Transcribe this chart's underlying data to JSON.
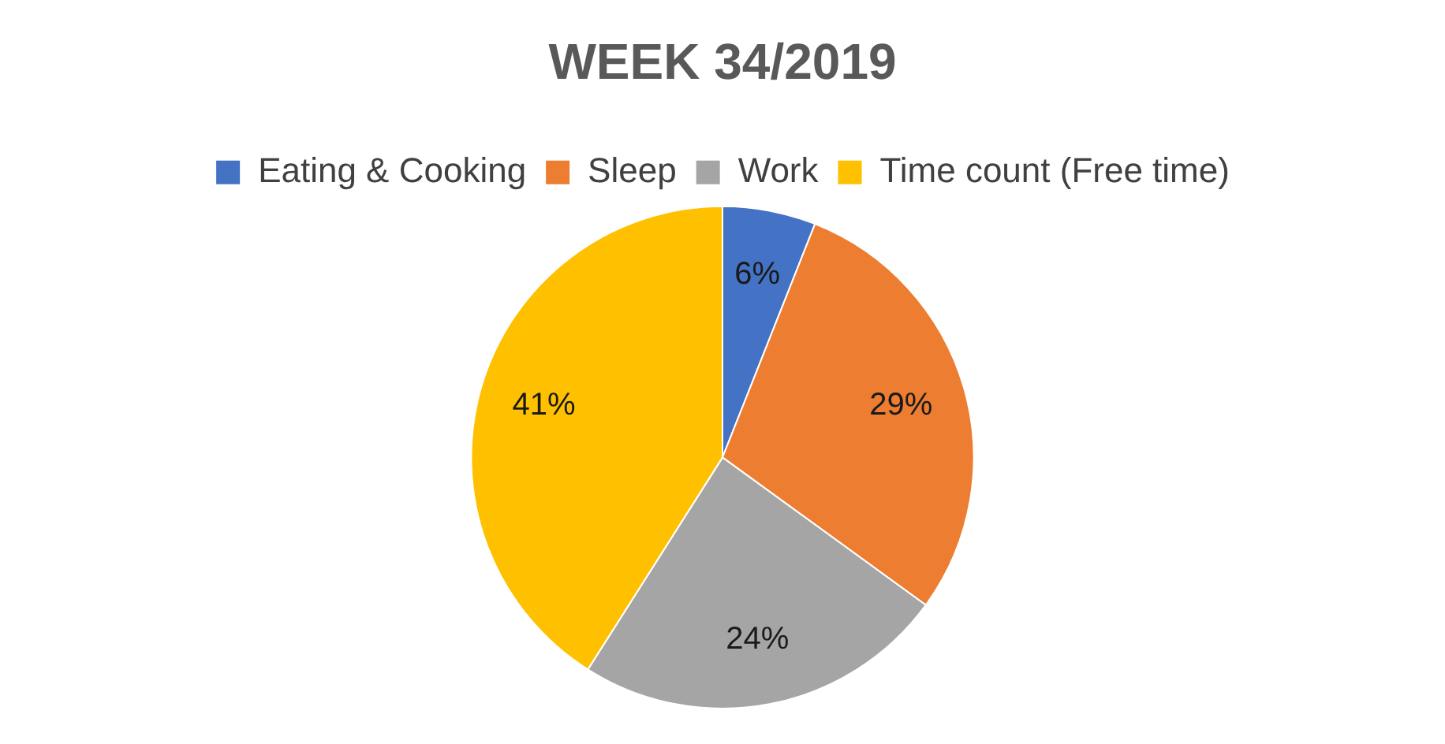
{
  "chart_data": {
    "type": "pie",
    "title": "WEEK 34/2019",
    "categories": [
      "Eating & Cooking",
      "Sleep",
      "Work",
      "Time count (Free time)"
    ],
    "values": [
      6,
      29,
      24,
      41
    ],
    "colors": [
      "#4472c4",
      "#ed7d31",
      "#a5a5a5",
      "#ffc000"
    ],
    "value_labels": [
      "6%",
      "29%",
      "24%",
      "41%"
    ],
    "legend": "top"
  }
}
